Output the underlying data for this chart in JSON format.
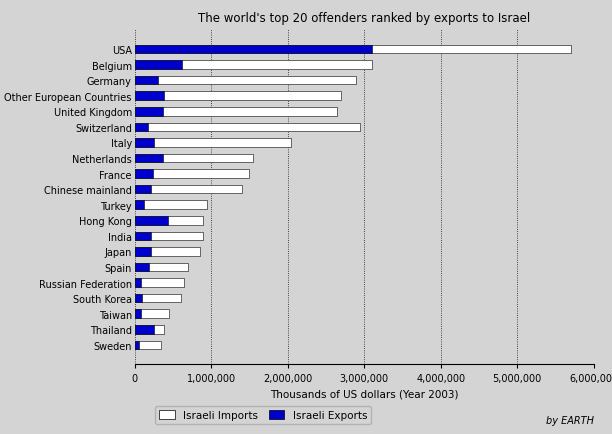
{
  "title": "The world's top 20 offenders ranked by exports to Israel",
  "xlabel": "Thousands of US dollars (Year 2003)",
  "countries": [
    "USA",
    "Belgium",
    "Germany",
    "Other European Countries",
    "United Kingdom",
    "Switzerland",
    "Italy",
    "Netherlands",
    "France",
    "Chinese mainland",
    "Turkey",
    "Hong Kong",
    "India",
    "Japan",
    "Spain",
    "Russian Federation",
    "South Korea",
    "Taiwan",
    "Thailand",
    "Sweden"
  ],
  "imports": [
    5700000,
    3100000,
    2900000,
    2700000,
    2650000,
    2950000,
    2050000,
    1550000,
    1500000,
    1400000,
    950000,
    900000,
    900000,
    850000,
    700000,
    650000,
    600000,
    450000,
    380000,
    350000
  ],
  "exports": [
    3100000,
    620000,
    300000,
    380000,
    370000,
    170000,
    250000,
    370000,
    240000,
    220000,
    120000,
    430000,
    220000,
    220000,
    190000,
    80000,
    90000,
    80000,
    250000,
    60000
  ],
  "import_color": "#ffffff",
  "export_color": "#0000cc",
  "background_color": "#d4d4d4",
  "bar_edge_color": "#000000",
  "xlim": [
    0,
    6000000
  ],
  "xticks": [
    0,
    1000000,
    2000000,
    3000000,
    4000000,
    5000000,
    6000000
  ],
  "legend_labels": [
    "Israeli Imports",
    "Israeli Exports"
  ],
  "watermark": "by EARTH",
  "bar_height": 0.55
}
